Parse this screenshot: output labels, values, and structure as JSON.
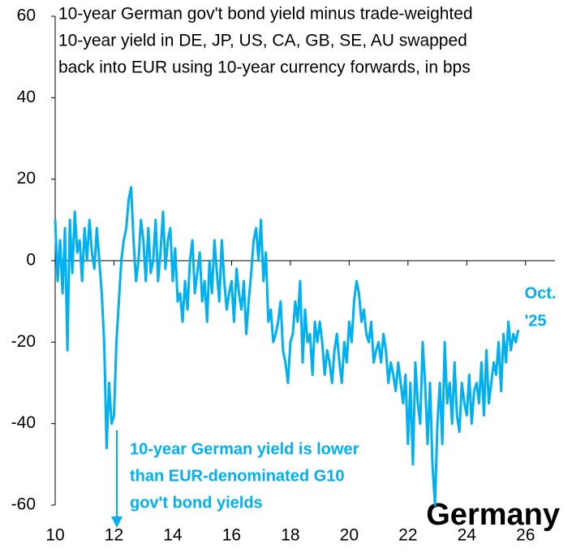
{
  "chart_data": {
    "type": "line",
    "title": [
      "10-year German gov't bond yield minus trade-weighted",
      "10-year yield in DE, JP, US, CA, GB, SE, AU swapped",
      "back into EUR using 10-year currency forwards, in bps"
    ],
    "annotations": {
      "last": [
        "Oct.",
        "'25"
      ],
      "note": [
        "10-year German yield is lower",
        "than EUR-denominated G10",
        "gov't bond yields"
      ],
      "country": "Germany"
    },
    "color": "#00b0f0",
    "x": [
      10,
      10.083,
      10.167,
      10.25,
      10.333,
      10.417,
      10.5,
      10.583,
      10.667,
      10.75,
      10.833,
      10.917,
      11,
      11.083,
      11.167,
      11.25,
      11.333,
      11.417,
      11.5,
      11.583,
      11.667,
      11.75,
      11.833,
      11.917,
      12,
      12.083,
      12.167,
      12.25,
      12.333,
      12.417,
      12.5,
      12.583,
      12.667,
      12.75,
      12.833,
      12.917,
      13,
      13.083,
      13.167,
      13.25,
      13.333,
      13.417,
      13.5,
      13.583,
      13.667,
      13.75,
      13.833,
      13.917,
      14,
      14.083,
      14.167,
      14.25,
      14.333,
      14.417,
      14.5,
      14.583,
      14.667,
      14.75,
      14.833,
      14.917,
      15,
      15.083,
      15.167,
      15.25,
      15.333,
      15.417,
      15.5,
      15.583,
      15.667,
      15.75,
      15.833,
      15.917,
      16,
      16.083,
      16.167,
      16.25,
      16.333,
      16.417,
      16.5,
      16.583,
      16.667,
      16.75,
      16.833,
      16.917,
      17,
      17.083,
      17.167,
      17.25,
      17.333,
      17.417,
      17.5,
      17.583,
      17.667,
      17.75,
      17.833,
      17.917,
      18,
      18.083,
      18.167,
      18.25,
      18.333,
      18.417,
      18.5,
      18.583,
      18.667,
      18.75,
      18.833,
      18.917,
      19,
      19.083,
      19.167,
      19.25,
      19.333,
      19.417,
      19.5,
      19.583,
      19.667,
      19.75,
      19.833,
      19.917,
      20,
      20.083,
      20.167,
      20.25,
      20.333,
      20.417,
      20.5,
      20.583,
      20.667,
      20.75,
      20.833,
      20.917,
      21,
      21.083,
      21.167,
      21.25,
      21.333,
      21.417,
      21.5,
      21.583,
      21.667,
      21.75,
      21.833,
      21.917,
      22,
      22.083,
      22.167,
      22.25,
      22.333,
      22.417,
      22.5,
      22.583,
      22.667,
      22.75,
      22.833,
      22.917,
      23,
      23.083,
      23.167,
      23.25,
      23.333,
      23.417,
      23.5,
      23.583,
      23.667,
      23.75,
      23.833,
      23.917,
      24,
      24.083,
      24.167,
      24.25,
      24.333,
      24.417,
      24.5,
      24.583,
      24.667,
      24.75,
      24.833,
      24.917,
      25,
      25.083,
      25.167,
      25.25,
      25.333,
      25.417,
      25.5,
      25.583,
      25.667,
      25.75
    ],
    "values": [
      10,
      -5,
      5,
      -8,
      8,
      -22,
      10,
      -3,
      12,
      2,
      5,
      -5,
      8,
      0,
      10,
      2,
      -2,
      8,
      0,
      -8,
      -20,
      -46,
      -30,
      -40,
      -38,
      -20,
      -10,
      0,
      5,
      8,
      15,
      18,
      5,
      -5,
      0,
      10,
      5,
      -5,
      8,
      -3,
      0,
      10,
      -5,
      2,
      12,
      -2,
      5,
      8,
      -5,
      3,
      -10,
      -8,
      -15,
      -5,
      -12,
      0,
      5,
      -8,
      -3,
      2,
      -10,
      -5,
      -15,
      0,
      -8,
      5,
      -3,
      -10,
      5,
      -5,
      -12,
      -8,
      -5,
      -15,
      -2,
      -8,
      -12,
      -5,
      -18,
      -10,
      -3,
      5,
      8,
      0,
      10,
      -5,
      2,
      -15,
      -12,
      -20,
      -18,
      -15,
      -10,
      -22,
      -25,
      -30,
      -20,
      -18,
      -10,
      -15,
      -5,
      -25,
      -12,
      -20,
      -18,
      -28,
      -15,
      -20,
      -15,
      -20,
      -28,
      -22,
      -25,
      -30,
      -22,
      -18,
      -25,
      -30,
      -20,
      -25,
      -15,
      -20,
      -10,
      -5,
      -8,
      -15,
      -12,
      -18,
      -20,
      -15,
      -25,
      -22,
      -20,
      -25,
      -18,
      -22,
      -30,
      -25,
      -28,
      -32,
      -25,
      -30,
      -35,
      -28,
      -45,
      -30,
      -50,
      -25,
      -35,
      -40,
      -20,
      -30,
      -45,
      -30,
      -50,
      -60,
      -40,
      -30,
      -45,
      -20,
      -35,
      -30,
      -40,
      -25,
      -38,
      -42,
      -30,
      -35,
      -38,
      -28,
      -40,
      -32,
      -30,
      -35,
      -25,
      -38,
      -22,
      -35,
      -30,
      -25,
      -28,
      -20,
      -32,
      -18,
      -25,
      -15,
      -22,
      -18,
      -20,
      -17
    ],
    "xlim": [
      10,
      27
    ],
    "ylim": [
      -60,
      60
    ],
    "xticks": [
      10,
      12,
      14,
      16,
      18,
      20,
      22,
      24,
      26
    ],
    "yticks": [
      -60,
      -40,
      -20,
      0,
      20,
      40,
      60
    ]
  }
}
